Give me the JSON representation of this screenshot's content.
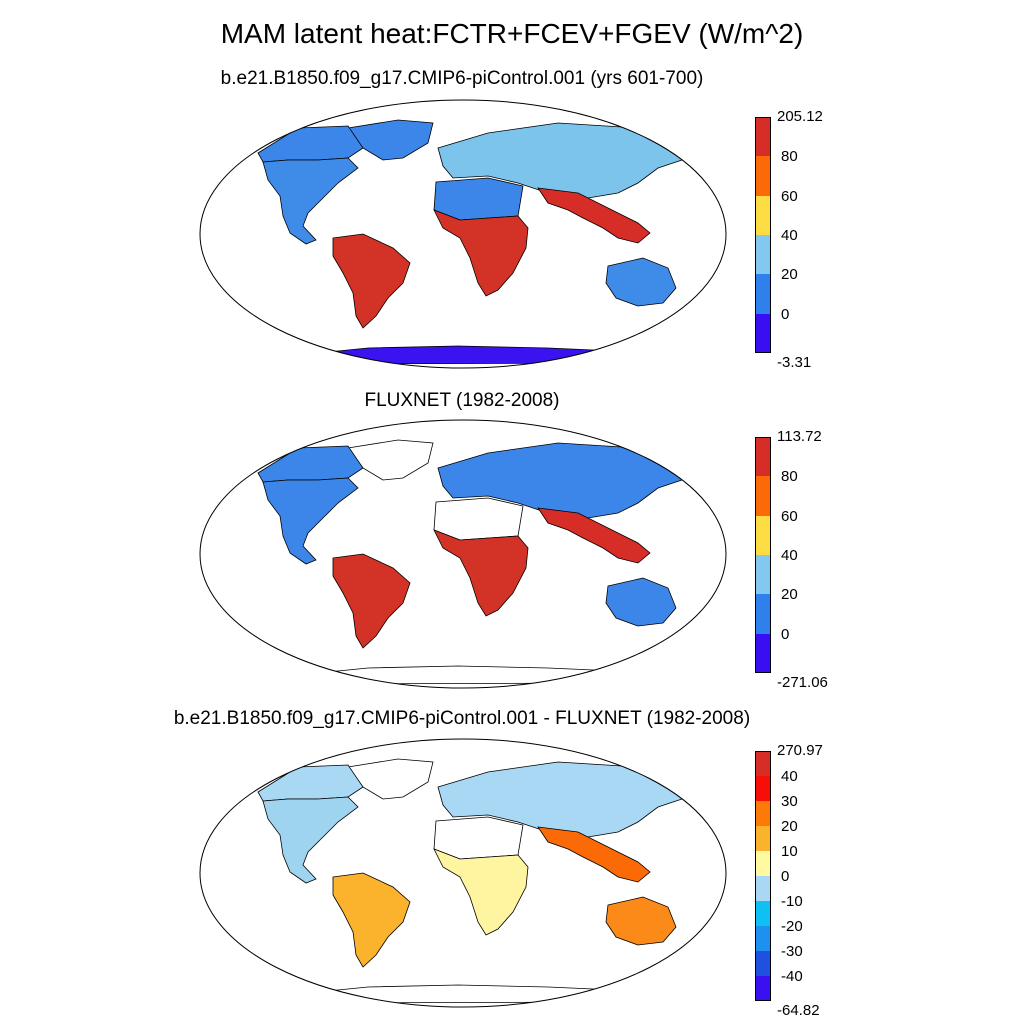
{
  "title": "MAM latent heat:FCTR+FCEV+FGEV (W/m^2)",
  "panels": [
    {
      "id": "model",
      "title": "b.e21.B1850.f09_g17.CMIP6-piControl.001 (yrs 601-700)",
      "colorbar": {
        "colors": [
          "#3a0ef3",
          "#2f7fec",
          "#84c8ef",
          "#fcdd44",
          "#fb6a06",
          "#d62d27"
        ],
        "labels": [
          "-3.31",
          "0",
          "20",
          "40",
          "60",
          "80",
          "205.12"
        ]
      },
      "land": {
        "north_america": "#3f8be8",
        "south_america": "#d33327",
        "europe_asia": "#7cc4ec",
        "africa": "#d33327",
        "sahara": "#3b86e8",
        "australia": "#3f8be8",
        "antarctica": "#3a13f0",
        "south_asia": "#d62d27",
        "boreal": "#3b86e8",
        "greenland": "#3b86e8"
      }
    },
    {
      "id": "obs",
      "title": "FLUXNET (1982-2008)",
      "colorbar": {
        "colors": [
          "#3a0ef3",
          "#2f7fec",
          "#84c8ef",
          "#fcdd44",
          "#fb6a06",
          "#d62d27"
        ],
        "labels": [
          "-271.06",
          "0",
          "20",
          "40",
          "60",
          "80",
          "113.72"
        ]
      },
      "land": {
        "north_america": "#3b86e8",
        "south_america": "#d33327",
        "europe_asia": "#3b86e8",
        "africa": "#d33327",
        "sahara": "#ffffff",
        "australia": "#3b86e8",
        "antarctica": "#ffffff",
        "south_asia": "#d62d27",
        "boreal": "#3b86e8",
        "greenland": "#ffffff"
      }
    },
    {
      "id": "diff",
      "title": "b.e21.B1850.f09_g17.CMIP6-piControl.001 - FLUXNET (1982-2008)",
      "colorbar": {
        "colors": [
          "#3a10f0",
          "#1f50e0",
          "#1e90f0",
          "#0fc0f3",
          "#a9d8f4",
          "#fff9a0",
          "#fbb22c",
          "#fb7a08",
          "#f70e08",
          "#d62d27"
        ],
        "labels": [
          "-64.82",
          "-40",
          "-30",
          "-20",
          "-10",
          "0",
          "10",
          "20",
          "30",
          "40",
          "270.97"
        ]
      },
      "land": {
        "north_america": "#9fd4f0",
        "south_america": "#fbb22c",
        "europe_asia": "#a9d8f4",
        "africa": "#fff4a0",
        "sahara": "#ffffff",
        "australia": "#fb8a18",
        "antarctica": "#ffffff",
        "south_asia": "#fb6a06",
        "boreal": "#a9d8f4",
        "greenland": "#ffffff"
      }
    }
  ]
}
